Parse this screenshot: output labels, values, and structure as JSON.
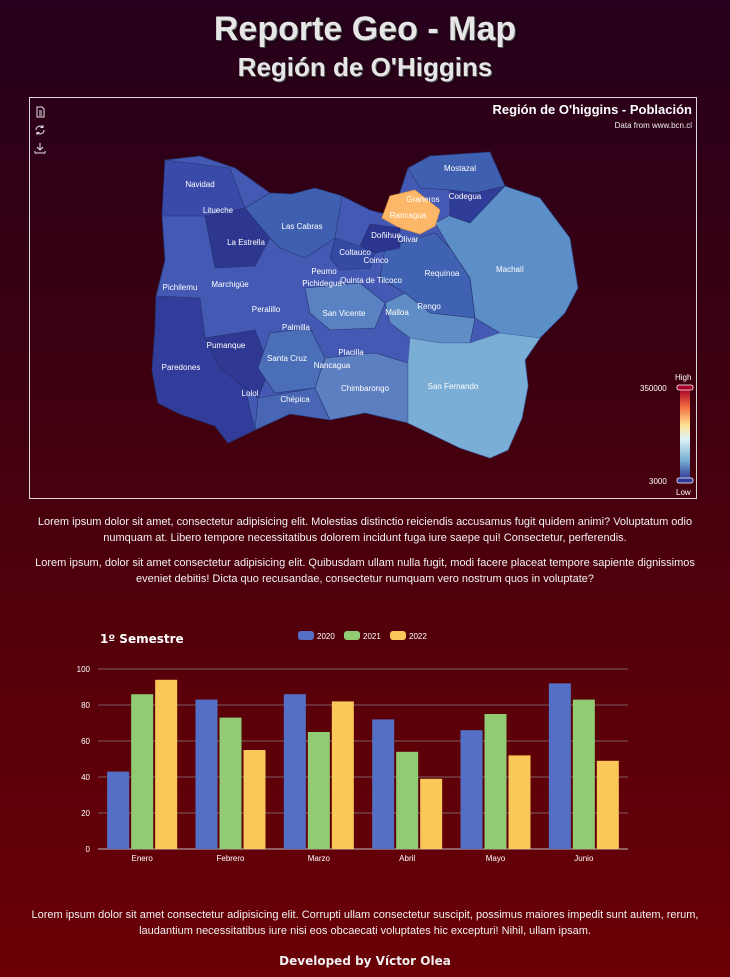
{
  "header": {
    "title": "Reporte Geo - Map",
    "subtitle": "Región de O'Higgins"
  },
  "map": {
    "title": "Región de O'higgins - Población",
    "subtitle": "Data from www.bcn.cl",
    "toolbar": {
      "icons": [
        "document-icon",
        "refresh-icon",
        "download-icon"
      ]
    },
    "legend": {
      "high_label": "High",
      "low_label": "Low",
      "max": 350000,
      "max_label": "350000",
      "min": 3000,
      "min_label": "3000"
    },
    "regions": [
      "Mostazal",
      "Graneros",
      "Codegua",
      "Rancagua",
      "Navidad",
      "Litueche",
      "Las Cabras",
      "Doñihue",
      "Olivar",
      "La Estrella",
      "Coltauco",
      "Coinco",
      "Peumo",
      "Requínoa",
      "Machalí",
      "Pichilemu",
      "Marchigüe",
      "Pichidegua",
      "Quinta de Tilcoco",
      "Rengo",
      "Peralillo",
      "San Vicente",
      "Malloa",
      "Palmilla",
      "Pumanque",
      "Placilla",
      "Santa Cruz",
      "Paredones",
      "Nancagua",
      "Lolol",
      "Chimbarongo",
      "San Fernando",
      "Chépica"
    ]
  },
  "paragraphs": {
    "p1": "Lorem ipsum dolor sit amet, consectetur adipisicing elit. Molestias distinctio reiciendis accusamus fugit quidem animi? Voluptatum odio numquam at. Libero tempore necessitatibus dolorem incidunt fuga iure saepe qui! Consectetur, perferendis.",
    "p2": "Lorem ipsum, dolor sit amet consectetur adipisicing elit. Quibusdam ullam nulla fugit, modi facere placeat tempore sapiente dignissimos eveniet debitis! Dicta quo recusandae, consectetur numquam vero nostrum quos in voluptate?",
    "p3": "Lorem ipsum dolor sit amet consectetur adipisicing elit. Corrupti ullam consectetur suscipit, possimus maiores impedit sunt autem, rerum, laudantium necessitatibus iure nisi eos obcaecati voluptates hic excepturi! Nihil, ullam ipsam."
  },
  "chart_data": {
    "type": "bar",
    "title": "1º Semestre",
    "categories": [
      "Enero",
      "Febrero",
      "Marzo",
      "Abril",
      "Mayo",
      "Junio"
    ],
    "series": [
      {
        "name": "2020",
        "color": "#5470c6",
        "values": [
          43,
          83,
          86,
          72,
          66,
          92
        ]
      },
      {
        "name": "2021",
        "color": "#91cc75",
        "values": [
          86,
          73,
          65,
          54,
          75,
          83
        ]
      },
      {
        "name": "2022",
        "color": "#fac858",
        "values": [
          94,
          55,
          82,
          39,
          52,
          49
        ]
      }
    ],
    "ylim": [
      0,
      100
    ],
    "yticks": [
      0,
      20,
      40,
      60,
      80,
      100
    ],
    "grid": true,
    "legend": "top-center"
  },
  "footer": {
    "text": "Developed by Víctor Olea"
  }
}
